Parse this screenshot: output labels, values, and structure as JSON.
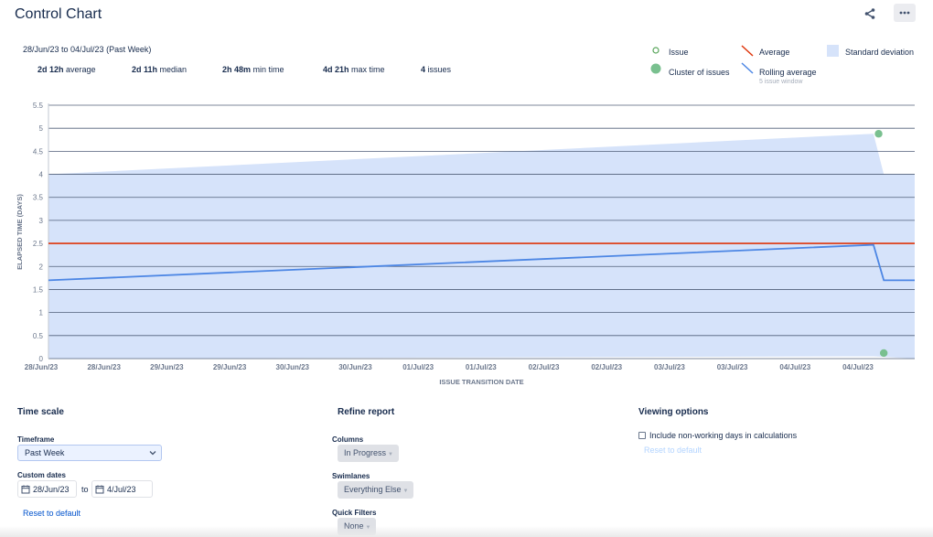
{
  "header": {
    "title": "Control Chart",
    "share_icon": "share-icon",
    "more_icon": "more-icon"
  },
  "summary": {
    "date_range": "28/Jun/23 to 04/Jul/23 (Past Week)",
    "stats": [
      {
        "value": "2d 12h",
        "label": "average"
      },
      {
        "value": "2d 11h",
        "label": "median"
      },
      {
        "value": "2h 48m",
        "label": "min time"
      },
      {
        "value": "4d 21h",
        "label": "max time"
      },
      {
        "value": "4",
        "label": "issues"
      }
    ]
  },
  "legend": {
    "issue": "Issue",
    "cluster": "Cluster of issues",
    "average": "Average",
    "rolling": "Rolling average",
    "rolling_sub": "5 issue window",
    "stddev": "Standard deviation"
  },
  "colors": {
    "average": "#de350b",
    "rolling": "#4c86e4",
    "stddev_fill": "#d6e3fa",
    "issue": "#79c08f",
    "gridline": "#505f79"
  },
  "chart_data": {
    "type": "line",
    "ylabel": "ELAPSED TIME (DAYS)",
    "xlabel": "ISSUE TRANSITION DATE",
    "ylim": [
      0,
      5.5
    ],
    "y_ticks": [
      "0",
      "0.5",
      "1",
      "1.5",
      "2",
      "2.5",
      "3",
      "3.5",
      "4",
      "4.5",
      "5",
      "5.5"
    ],
    "x_ticks": [
      "28/Jun/23",
      "28/Jun/23",
      "29/Jun/23",
      "29/Jun/23",
      "30/Jun/23",
      "30/Jun/23",
      "01/Jul/23",
      "01/Jul/23",
      "02/Jul/23",
      "02/Jul/23",
      "03/Jul/23",
      "03/Jul/23",
      "04/Jul/23",
      "04/Jul/23"
    ],
    "xlim": [
      "2023-06-28 00:00",
      "2023-07-05 00:00"
    ],
    "average": 2.5,
    "series": [
      {
        "name": "Rolling average",
        "points": [
          [
            "2023-06-28 00:00",
            1.7
          ],
          [
            "2023-07-04 16:00",
            2.47
          ],
          [
            "2023-07-04 18:00",
            1.7
          ],
          [
            "2023-07-05 00:00",
            1.7
          ]
        ]
      },
      {
        "name": "Standard deviation",
        "upper": [
          [
            "2023-06-28 00:00",
            4.0
          ],
          [
            "2023-07-04 16:00",
            4.88
          ],
          [
            "2023-07-04 18:00",
            4.0
          ],
          [
            "2023-07-05 00:00",
            4.0
          ]
        ],
        "lower": [
          [
            "2023-06-28 00:00",
            0
          ],
          [
            "2023-07-04 16:00",
            0.05
          ],
          [
            "2023-07-05 00:00",
            0
          ]
        ]
      }
    ],
    "issues": [
      [
        "2023-07-04 17:00",
        4.88
      ],
      [
        "2023-07-04 18:00",
        0.12
      ]
    ]
  },
  "time_scale": {
    "title": "Time scale",
    "timeframe_label": "Timeframe",
    "timeframe_value": "Past Week",
    "custom_dates_label": "Custom dates",
    "date_from": "28/Jun/23",
    "to_text": "to",
    "date_to": "4/Jul/23",
    "reset": "Reset to default"
  },
  "refine": {
    "title": "Refine report",
    "columns_label": "Columns",
    "columns_value": "In Progress",
    "swimlanes_label": "Swimlanes",
    "swimlanes_value": "Everything Else",
    "filters_label": "Quick Filters",
    "filters_value": "None"
  },
  "viewing": {
    "title": "Viewing options",
    "checkbox_label": "Include non-working days in calculations",
    "reset": "Reset to default"
  }
}
